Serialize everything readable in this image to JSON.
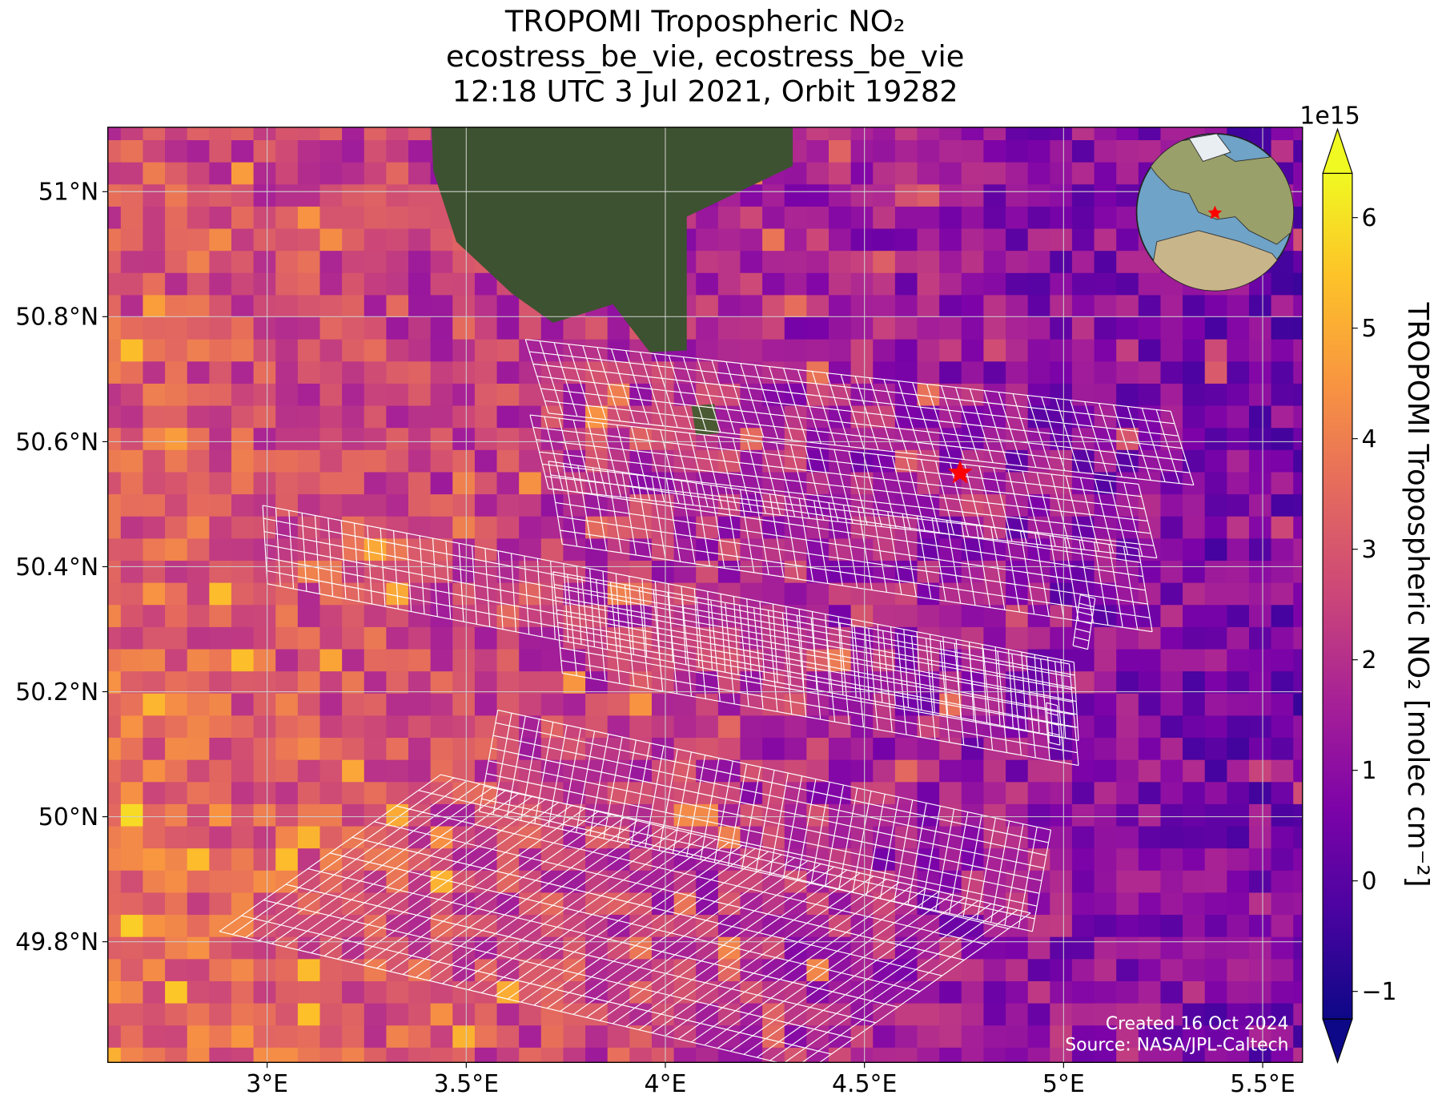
{
  "chart_data": {
    "type": "map",
    "title": [
      "TROPOMI Tropospheric NO₂",
      "ecostress_be_vie, ecostress_be_vie",
      "12:18 UTC 3 Jul 2021, Orbit 19282"
    ],
    "xlim": [
      2.6,
      5.6
    ],
    "ylim": [
      49.607,
      51.103
    ],
    "xticks": [
      {
        "value": 3,
        "label": "3°E"
      },
      {
        "value": 3.5,
        "label": "3.5°E"
      },
      {
        "value": 4,
        "label": "4°E"
      },
      {
        "value": 4.5,
        "label": "4.5°E"
      },
      {
        "value": 5,
        "label": "5°E"
      },
      {
        "value": 5.5,
        "label": "5.5°E"
      }
    ],
    "yticks": [
      {
        "value": 49.8,
        "label": "49.8°N"
      },
      {
        "value": 50,
        "label": "50°N"
      },
      {
        "value": 50.2,
        "label": "50.2°N"
      },
      {
        "value": 50.4,
        "label": "50.4°N"
      },
      {
        "value": 50.6,
        "label": "50.6°N"
      },
      {
        "value": 50.8,
        "label": "50.8°N"
      },
      {
        "value": 51,
        "label": "51°N"
      }
    ],
    "grid": true,
    "colorbar": {
      "label": "TROPOMI Tropospheric NO₂ [molec cm⁻²]",
      "exponent": "1e15",
      "lim": [
        -1.25,
        6.4
      ],
      "ticks": [
        {
          "value": -1,
          "label": "−1"
        },
        0,
        1,
        2,
        3,
        4,
        5,
        6
      ],
      "extend": "both"
    },
    "markers": [
      {
        "x": 4.74,
        "y": 50.55,
        "color": "#ff0000"
      }
    ],
    "credits": [
      "Created 16 Oct 2024",
      "Source: NASA/JPL-Caltech"
    ]
  }
}
